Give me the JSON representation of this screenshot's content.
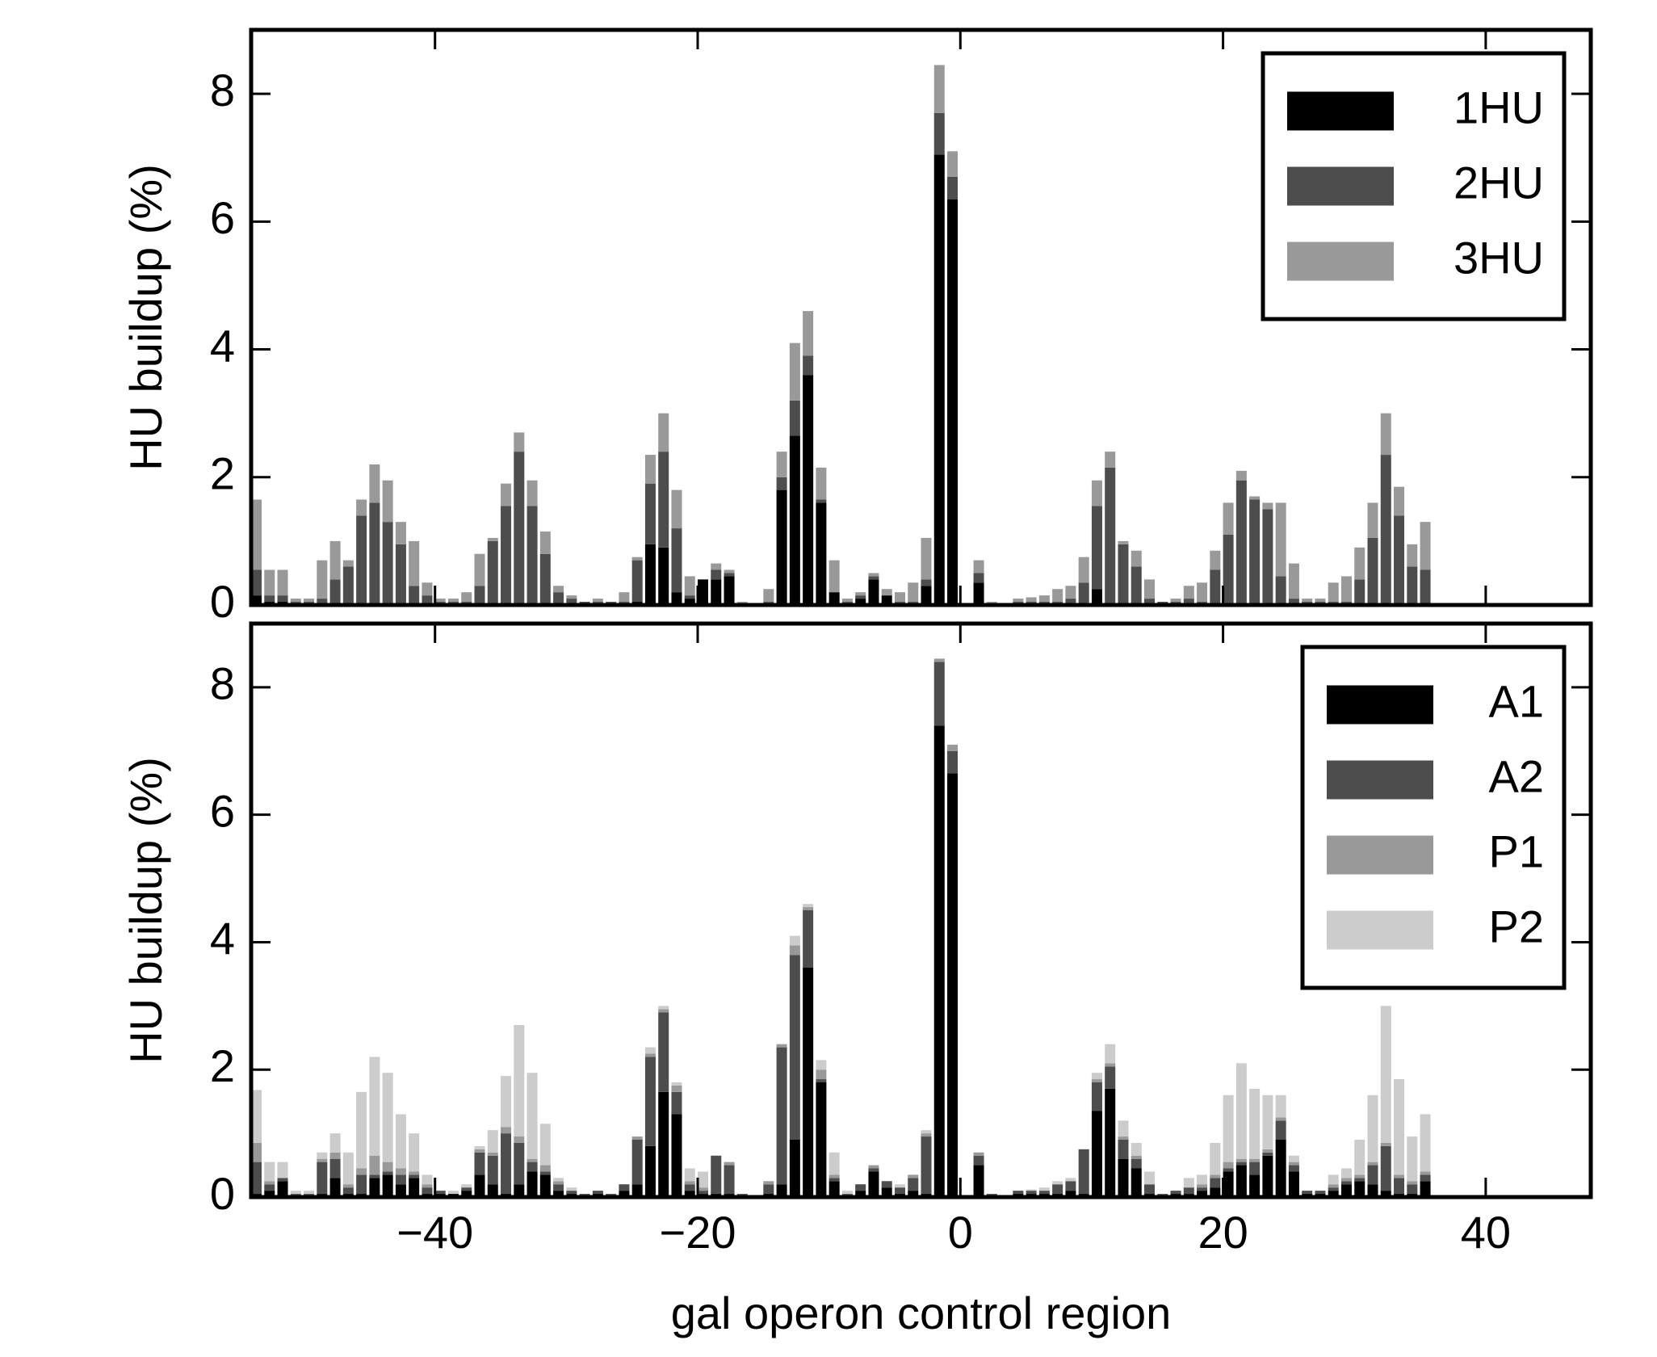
{
  "chart_data": [
    {
      "type": "bar",
      "stacked": true,
      "ylabel": "HU buildup (%)",
      "x": [
        -54,
        -53,
        -52,
        -51,
        -50,
        -49,
        -48,
        -47,
        -46,
        -45,
        -44,
        -43,
        -42,
        -41,
        -40,
        -39,
        -38,
        -37,
        -36,
        -35,
        -34,
        -33,
        -32,
        -31,
        -30,
        -29,
        -28,
        -27,
        -26,
        -25,
        -24,
        -23,
        -22,
        -21,
        -20,
        -19,
        -18,
        -17,
        -16,
        -15,
        -14,
        -13,
        -12,
        -11,
        -10,
        -9,
        -8,
        -7,
        -6,
        -5,
        -4,
        -3,
        -2,
        -1,
        0,
        1,
        2,
        3,
        4,
        5,
        6,
        7,
        8,
        9,
        10,
        11,
        12,
        13,
        14,
        15,
        16,
        17,
        18,
        19,
        20,
        21,
        22,
        23,
        24,
        25,
        26,
        27,
        28,
        29,
        30,
        31,
        32,
        33,
        34,
        35
      ],
      "series": [
        {
          "name": "1HU",
          "color": "#000000",
          "values": [
            0.15,
            0.05,
            0.05,
            0,
            0,
            0,
            0,
            0,
            0,
            0,
            0,
            0,
            0,
            0,
            0,
            0,
            0,
            0,
            0,
            0,
            0,
            0,
            0,
            0,
            0,
            0,
            0,
            0,
            0,
            0.05,
            0.95,
            0.9,
            0.2,
            0.1,
            0.4,
            0.4,
            0.45,
            0,
            0,
            0,
            1.8,
            2.65,
            3.6,
            1.6,
            0.2,
            0,
            0.1,
            0.4,
            0.15,
            0,
            0,
            0.3,
            7.05,
            6.35,
            0,
            0.35,
            0,
            0,
            0,
            0,
            0,
            0,
            0,
            0,
            0.25,
            0,
            0,
            0,
            0,
            0,
            0,
            0,
            0,
            0,
            0,
            0,
            0,
            0,
            0,
            0,
            0,
            0,
            0,
            0,
            0,
            0,
            0,
            0,
            0,
            0
          ]
        },
        {
          "name": "2HU",
          "color": "#4d4d4d",
          "values": [
            0.4,
            0.1,
            0.1,
            0.05,
            0.05,
            0.1,
            0.4,
            0.6,
            1.4,
            1.6,
            1.3,
            0.95,
            0.3,
            0.15,
            0.05,
            0.05,
            0.05,
            0.3,
            1.0,
            1.55,
            2.4,
            1.55,
            0.8,
            0.2,
            0.1,
            0.05,
            0.05,
            0.05,
            0.05,
            0.65,
            0.95,
            1.5,
            1.0,
            0.05,
            0,
            0.15,
            0.05,
            0,
            0,
            0.05,
            0.2,
            0.55,
            0.3,
            0.05,
            0,
            0.05,
            0.05,
            0.05,
            0,
            0.05,
            0.05,
            0.1,
            0.65,
            0.35,
            0,
            0.15,
            0,
            0,
            0.05,
            0.05,
            0.05,
            0.05,
            0.1,
            0.35,
            1.3,
            2.15,
            0.95,
            0.6,
            0.1,
            0.05,
            0.05,
            0.1,
            0.05,
            0.55,
            1.1,
            1.95,
            1.65,
            1.5,
            0.45,
            0.1,
            0.05,
            0.05,
            0.05,
            0.05,
            0.4,
            1.05,
            2.35,
            1.4,
            0.6,
            0.55
          ]
        },
        {
          "name": "3HU",
          "color": "#999999",
          "values": [
            1.1,
            0.4,
            0.4,
            0.05,
            0.05,
            0.6,
            0.6,
            0.1,
            0.25,
            0.6,
            0.65,
            0.35,
            0.7,
            0.2,
            0.05,
            0.05,
            0.15,
            0.5,
            0.05,
            0.35,
            0.3,
            0.4,
            0.35,
            0.1,
            0.05,
            0,
            0.05,
            0,
            0.15,
            0.05,
            0.45,
            0.6,
            0.6,
            0.3,
            0,
            0.1,
            0.05,
            0.05,
            0.03,
            0.2,
            0.4,
            0.9,
            0.7,
            0.5,
            0.5,
            0.05,
            0.05,
            0.05,
            0.1,
            0.15,
            0.3,
            0.65,
            0.75,
            0.4,
            0,
            0.2,
            0.05,
            0.02,
            0.05,
            0.07,
            0.1,
            0.2,
            0.2,
            0.4,
            0.4,
            0.25,
            0.05,
            0.25,
            0.3,
            0,
            0.05,
            0.2,
            0.3,
            0.3,
            0.5,
            0.15,
            0.05,
            0.1,
            1.15,
            0.55,
            0.05,
            0.05,
            0.3,
            0.4,
            0.5,
            0.55,
            0.65,
            0.45,
            0.35,
            0.75
          ]
        }
      ],
      "xlim": [
        -54,
        48
      ],
      "xticks": [
        -40,
        -20,
        0,
        20,
        40
      ],
      "show_xtick_labels": false,
      "ylim": [
        0,
        9
      ],
      "yticks": [
        0,
        2,
        4,
        6,
        8
      ],
      "legend": "upper right"
    },
    {
      "type": "bar",
      "stacked": true,
      "ylabel": "HU buildup (%)",
      "xlabel": "gal operon control region",
      "x": [
        -54,
        -53,
        -52,
        -51,
        -50,
        -49,
        -48,
        -47,
        -46,
        -45,
        -44,
        -43,
        -42,
        -41,
        -40,
        -39,
        -38,
        -37,
        -36,
        -35,
        -34,
        -33,
        -32,
        -31,
        -30,
        -29,
        -28,
        -27,
        -26,
        -25,
        -24,
        -23,
        -22,
        -21,
        -20,
        -19,
        -18,
        -17,
        -16,
        -15,
        -14,
        -13,
        -12,
        -11,
        -10,
        -9,
        -8,
        -7,
        -6,
        -5,
        -4,
        -3,
        -2,
        -1,
        0,
        1,
        2,
        3,
        4,
        5,
        6,
        7,
        8,
        9,
        10,
        11,
        12,
        13,
        14,
        15,
        16,
        17,
        18,
        19,
        20,
        21,
        22,
        23,
        24,
        25,
        26,
        27,
        28,
        29,
        30,
        31,
        32,
        33,
        34,
        35
      ],
      "series": [
        {
          "name": "A1",
          "color": "#000000",
          "values": [
            0.05,
            0.1,
            0.25,
            0,
            0,
            0.05,
            0.3,
            0.05,
            0.05,
            0.3,
            0.35,
            0.2,
            0.3,
            0.05,
            0.05,
            0.05,
            0.1,
            0.35,
            0.2,
            0.05,
            0.2,
            0.4,
            0.35,
            0.1,
            0.05,
            0,
            0.05,
            0,
            0.1,
            0.2,
            0.8,
            1.65,
            1.3,
            0.1,
            0.05,
            0.05,
            0.05,
            0,
            0,
            0.05,
            0.2,
            0.9,
            3.6,
            1.8,
            0.25,
            0,
            0.1,
            0.4,
            0.15,
            0.05,
            0.1,
            0.05,
            7.4,
            6.65,
            0,
            0.5,
            0,
            0,
            0.05,
            0.05,
            0.05,
            0.05,
            0.1,
            0.05,
            1.35,
            1.7,
            0.6,
            0.45,
            0.05,
            0,
            0.05,
            0.05,
            0.1,
            0.15,
            0.4,
            0.5,
            0.35,
            0.65,
            0.9,
            0.4,
            0.05,
            0.05,
            0.1,
            0.2,
            0.25,
            0.2,
            0.1,
            0.05,
            0.05,
            0.25
          ]
        },
        {
          "name": "A2",
          "color": "#4d4d4d",
          "values": [
            0.5,
            0.1,
            0.05,
            0.05,
            0.05,
            0.5,
            0.3,
            0.1,
            0.3,
            0.05,
            0.05,
            0.15,
            0.05,
            0.1,
            0.05,
            0,
            0.05,
            0.35,
            0.45,
            0.95,
            0.65,
            0.15,
            0.05,
            0.1,
            0.05,
            0.05,
            0.05,
            0.05,
            0.1,
            0.7,
            1.4,
            1.25,
            0.35,
            0.1,
            0.05,
            0.6,
            0.45,
            0.05,
            0.03,
            0.15,
            2.15,
            2.9,
            0.9,
            0.05,
            0.05,
            0.05,
            0.1,
            0.05,
            0.1,
            0.1,
            0.2,
            0.9,
            1.0,
            0.35,
            0,
            0.15,
            0.05,
            0.02,
            0.05,
            0.05,
            0.05,
            0.15,
            0.15,
            0.7,
            0.45,
            0.35,
            0.3,
            0.15,
            0.15,
            0.05,
            0.05,
            0.1,
            0.05,
            0.15,
            0.05,
            0.05,
            0.2,
            0.05,
            0.3,
            0.1,
            0.05,
            0.05,
            0.05,
            0.05,
            0.05,
            0.3,
            0.7,
            0.25,
            0.15,
            0.1
          ]
        },
        {
          "name": "P1",
          "color": "#999999",
          "values": [
            0.3,
            0.05,
            0,
            0,
            0,
            0.05,
            0.1,
            0.05,
            0.1,
            0.3,
            0.15,
            0.1,
            0.05,
            0.05,
            0,
            0,
            0,
            0.05,
            0.05,
            0.1,
            0.1,
            0.05,
            0.1,
            0.05,
            0,
            0,
            0,
            0,
            0,
            0.05,
            0.05,
            0.05,
            0.1,
            0.05,
            0.05,
            0,
            0.05,
            0,
            0,
            0.05,
            0.05,
            0.15,
            0.05,
            0.15,
            0.05,
            0,
            0,
            0.05,
            0,
            0,
            0.05,
            0.05,
            0.05,
            0.1,
            0,
            0.05,
            0,
            0,
            0,
            0,
            0,
            0,
            0,
            0,
            0.05,
            0.05,
            0.05,
            0.05,
            0,
            0,
            0,
            0,
            0.05,
            0.05,
            0.1,
            0.05,
            0.05,
            0.05,
            0.05,
            0.05,
            0,
            0,
            0.05,
            0.05,
            0.05,
            0.05,
            0.05,
            0.05,
            0.05,
            0.05
          ]
        },
        {
          "name": "P2",
          "color": "#cccccc",
          "values": [
            0.83,
            0.3,
            0.25,
            0.05,
            0.05,
            0.1,
            0.3,
            0.5,
            1.2,
            1.55,
            1.4,
            0.85,
            0.6,
            0.15,
            0,
            0.05,
            0.05,
            0.05,
            0.35,
            0.8,
            1.75,
            1.35,
            0.65,
            0.05,
            0.05,
            0,
            0,
            0,
            0,
            0,
            0.1,
            0.05,
            0.05,
            0.2,
            0.25,
            0,
            0,
            0,
            0,
            0,
            0,
            0.15,
            0.05,
            0.15,
            0.35,
            0.05,
            0,
            0,
            0,
            0.05,
            0,
            0.05,
            0,
            0,
            0,
            0,
            0,
            0,
            0,
            0.02,
            0.05,
            0.05,
            0.05,
            0,
            0.1,
            0.3,
            0.25,
            0.2,
            0.2,
            0,
            0,
            0.15,
            0.15,
            0.5,
            1.05,
            1.5,
            1.1,
            0.85,
            0.35,
            0.1,
            0,
            0,
            0.15,
            0.15,
            0.55,
            1.05,
            2.15,
            1.5,
            0.7,
            0.9
          ]
        }
      ],
      "xlim": [
        -54,
        48
      ],
      "xticks": [
        {
          "value": -40,
          "label": "−40"
        },
        {
          "value": -20,
          "label": "−20"
        },
        0,
        20,
        40
      ],
      "show_xtick_labels": true,
      "ylim": [
        0,
        9
      ],
      "yticks": [
        0,
        2,
        4,
        6,
        8
      ],
      "legend": "upper right"
    }
  ]
}
